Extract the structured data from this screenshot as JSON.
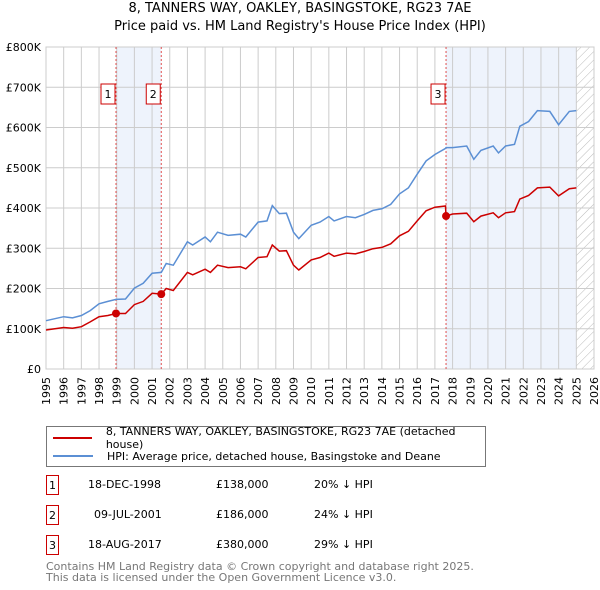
{
  "title": "8, TANNERS WAY, OAKLEY, BASINGSTOKE, RG23 7AE",
  "subtitle": "Price paid vs. HM Land Registry's House Price Index (HPI)",
  "chart_data": {
    "type": "line",
    "ylim": [
      0,
      800000
    ],
    "xlim": [
      1995,
      2026
    ],
    "yticks": [
      {
        "v": 0,
        "label": "£0"
      },
      {
        "v": 100000,
        "label": "£100K"
      },
      {
        "v": 200000,
        "label": "£200K"
      },
      {
        "v": 300000,
        "label": "£300K"
      },
      {
        "v": 400000,
        "label": "£400K"
      },
      {
        "v": 500000,
        "label": "£500K"
      },
      {
        "v": 600000,
        "label": "£600K"
      },
      {
        "v": 700000,
        "label": "£700K"
      },
      {
        "v": 800000,
        "label": "£800K"
      }
    ],
    "xticks": [
      "1995",
      "1996",
      "1997",
      "1998",
      "1999",
      "2000",
      "2001",
      "2002",
      "2003",
      "2004",
      "2005",
      "2006",
      "2007",
      "2008",
      "2009",
      "2010",
      "2011",
      "2012",
      "2013",
      "2014",
      "2015",
      "2016",
      "2017",
      "2018",
      "2019",
      "2020",
      "2021",
      "2022",
      "2023",
      "2024",
      "2025",
      "2026"
    ],
    "x": [
      1995.0,
      1996,
      1996.5,
      1997,
      1997.5,
      1998,
      1998.5,
      1998.96,
      1999.5,
      2000,
      2000.5,
      2001,
      2001.52,
      2001.8,
      2002.2,
      2003,
      2003.3,
      2004,
      2004.3,
      2004.7,
      2005.3,
      2006,
      2006.3,
      2007,
      2007.5,
      2007.8,
      2008.2,
      2008.6,
      2009,
      2009.3,
      2010,
      2010.5,
      2011,
      2011.3,
      2012,
      2012.5,
      2013,
      2013.5,
      2014,
      2014.5,
      2015,
      2015.5,
      2016,
      2016.5,
      2017,
      2017.6,
      2017.63,
      2018,
      2018.8,
      2019.2,
      2019.6,
      2020.3,
      2020.6,
      2021,
      2021.5,
      2021.8,
      2022.3,
      2022.8,
      2023.5,
      2024,
      2024.6,
      2025.0
    ],
    "series": [
      {
        "name": "8, TANNERS WAY, OAKLEY, BASINGSTOKE, RG23 7AE (detached house)",
        "color": "#cc0000",
        "values": [
          97,
          103,
          101,
          105,
          117,
          130,
          133,
          138,
          138,
          160,
          168,
          188,
          186,
          200,
          195,
          240,
          234,
          248,
          240,
          258,
          252,
          254,
          249,
          277,
          279,
          308,
          293,
          294,
          258,
          246,
          271,
          277,
          288,
          280,
          288,
          286,
          292,
          299,
          302,
          311,
          331,
          342,
          368,
          393,
          402,
          405,
          380,
          385,
          387,
          366,
          380,
          388,
          376,
          388,
          391,
          422,
          431,
          450,
          452,
          430,
          448,
          450
        ]
      },
      {
        "name": "HPI: Average price, detached house, Basingstoke and Deane",
        "color": "#5b8fd4",
        "values": [
          120,
          130,
          127,
          133,
          145,
          162,
          168,
          173,
          174,
          201,
          213,
          238,
          240,
          262,
          258,
          316,
          308,
          328,
          316,
          340,
          332,
          335,
          328,
          365,
          368,
          406,
          386,
          387,
          340,
          324,
          357,
          365,
          379,
          368,
          379,
          376,
          384,
          394,
          398,
          409,
          435,
          450,
          484,
          517,
          533,
          548,
          550,
          550,
          554,
          521,
          543,
          554,
          537,
          554,
          558,
          603,
          615,
          642,
          640,
          607,
          640,
          642
        ]
      }
    ],
    "value_unit": "thousands GBP",
    "sales": [
      {
        "n": "1",
        "x": 1998.96,
        "price": 138,
        "date": "18-DEC-1998",
        "price_label": "£138,000",
        "hpi_label": "20% ↓ HPI"
      },
      {
        "n": "2",
        "x": 2001.52,
        "price": 186,
        "date": "09-JUL-2001",
        "price_label": "£186,000",
        "hpi_label": "24% ↓ HPI"
      },
      {
        "n": "3",
        "x": 2017.63,
        "price": 380,
        "date": "18-AUG-2017",
        "price_label": "£380,000",
        "hpi_label": "29% ↓ HPI"
      }
    ],
    "shaded": [
      [
        1998.96,
        2001.52
      ],
      [
        2017.63,
        2025.0
      ]
    ],
    "forecast_start": 2025.0
  },
  "legend": {
    "red": "8, TANNERS WAY, OAKLEY, BASINGSTOKE, RG23 7AE (detached house)",
    "blue": "HPI: Average price, detached house, Basingstoke and Deane"
  },
  "footer": {
    "line1": "Contains HM Land Registry data © Crown copyright and database right 2025.",
    "line2": "This data is licensed under the Open Government Licence v3.0."
  }
}
